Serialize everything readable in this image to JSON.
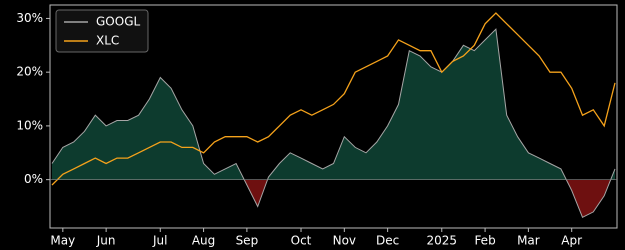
{
  "chart_data": {
    "type": "line",
    "categories": [
      null,
      "May",
      null,
      null,
      null,
      "Jun",
      null,
      null,
      null,
      null,
      "Jul",
      null,
      null,
      null,
      "Aug",
      null,
      null,
      null,
      "Sep",
      null,
      null,
      null,
      null,
      "Oct",
      null,
      null,
      null,
      "Nov",
      null,
      null,
      null,
      "Dec",
      null,
      null,
      null,
      null,
      "2025",
      null,
      null,
      null,
      "Feb",
      null,
      null,
      null,
      "Mar",
      null,
      null,
      null,
      "Apr",
      null,
      null,
      null,
      null
    ],
    "series": [
      {
        "name": "GOOGL",
        "color": "#a6a6a6",
        "fill_positive": "#0d3b2e",
        "fill_negative": "#6e1010",
        "values": [
          3,
          6,
          7,
          9,
          12,
          10,
          11,
          11,
          12,
          15,
          19,
          17,
          13,
          10,
          3,
          1,
          2,
          3,
          -1,
          -5,
          0.5,
          3,
          5,
          4,
          3,
          2,
          3,
          8,
          6,
          5,
          7,
          10,
          14,
          24,
          23,
          21,
          20,
          22,
          25,
          24,
          26,
          28,
          12,
          8,
          5,
          4,
          3,
          2,
          -2,
          -7,
          -6,
          -3,
          2
        ]
      },
      {
        "name": "XLC",
        "color": "#f5a21b",
        "values": [
          -1,
          1,
          2,
          3,
          4,
          3,
          4,
          4,
          5,
          6,
          7,
          7,
          6,
          6,
          5,
          7,
          8,
          8,
          8,
          7,
          8,
          10,
          12,
          13,
          12,
          13,
          14,
          16,
          20,
          21,
          22,
          23,
          26,
          25,
          24,
          24,
          20,
          22,
          23,
          25,
          29,
          31,
          29,
          27,
          25,
          23,
          20,
          20,
          17,
          12,
          13,
          10,
          18
        ]
      }
    ],
    "ylim": [
      -9,
      32.5
    ],
    "yticks": [
      {
        "value": 0,
        "label": "0%"
      },
      {
        "value": 10,
        "label": "10%"
      },
      {
        "value": 20,
        "label": "20%"
      },
      {
        "value": 30,
        "label": "30%"
      }
    ],
    "legend": "upper left"
  }
}
